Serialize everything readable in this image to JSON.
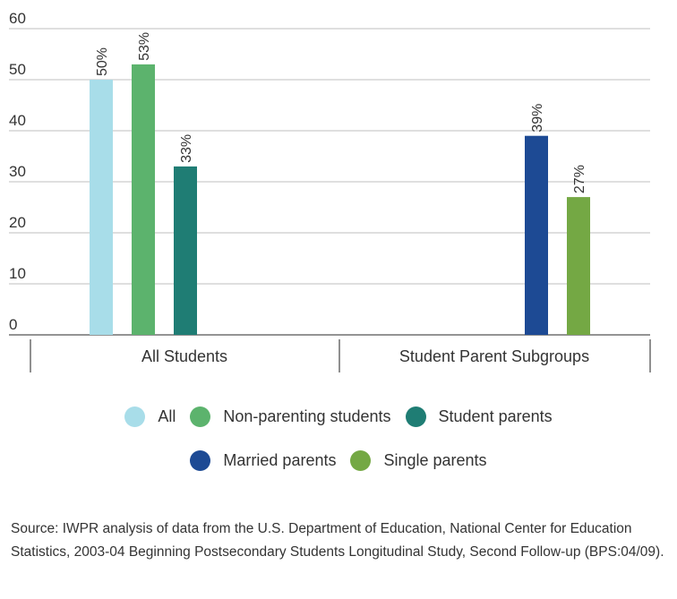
{
  "chart_data": {
    "type": "bar",
    "title": "",
    "xlabel": "",
    "ylabel": "",
    "ylim": [
      0,
      60
    ],
    "yticks": [
      0,
      10,
      20,
      30,
      40,
      50,
      60
    ],
    "grid": true,
    "legend_position": "bottom",
    "groups": [
      {
        "label": "All Students",
        "bars": [
          {
            "series": "All",
            "value": 50,
            "label": "50%"
          },
          {
            "series": "Non-parenting students",
            "value": 53,
            "label": "53%"
          },
          {
            "series": "Student parents",
            "value": 33,
            "label": "33%"
          }
        ]
      },
      {
        "label": "Student Parent Subgroups",
        "bars": [
          {
            "series": "Married parents",
            "value": 39,
            "label": "39%"
          },
          {
            "series": "Single parents",
            "value": 27,
            "label": "27%"
          }
        ]
      }
    ],
    "series": [
      {
        "name": "All",
        "color": "#a8dde9"
      },
      {
        "name": "Non-parenting students",
        "color": "#5cb36d"
      },
      {
        "name": "Student parents",
        "color": "#1f7d74"
      },
      {
        "name": "Married parents",
        "color": "#1d4a94"
      },
      {
        "name": "Single parents",
        "color": "#74a844"
      }
    ]
  },
  "legend": {
    "row1": [
      {
        "label": "All",
        "color": "#a8dde9"
      },
      {
        "label": "Non-parenting students",
        "color": "#5cb36d"
      },
      {
        "label": "Student parents",
        "color": "#1f7d74"
      }
    ],
    "row2": [
      {
        "label": "Married parents",
        "color": "#1d4a94"
      },
      {
        "label": "Single parents",
        "color": "#74a844"
      }
    ]
  },
  "source": "Source: IWPR analysis of data from the U.S. Department of Education, National Center for Education Statistics, 2003-04 Beginning Postsecondary Students Longitudinal Study, Second Follow-up (BPS:04/09)."
}
